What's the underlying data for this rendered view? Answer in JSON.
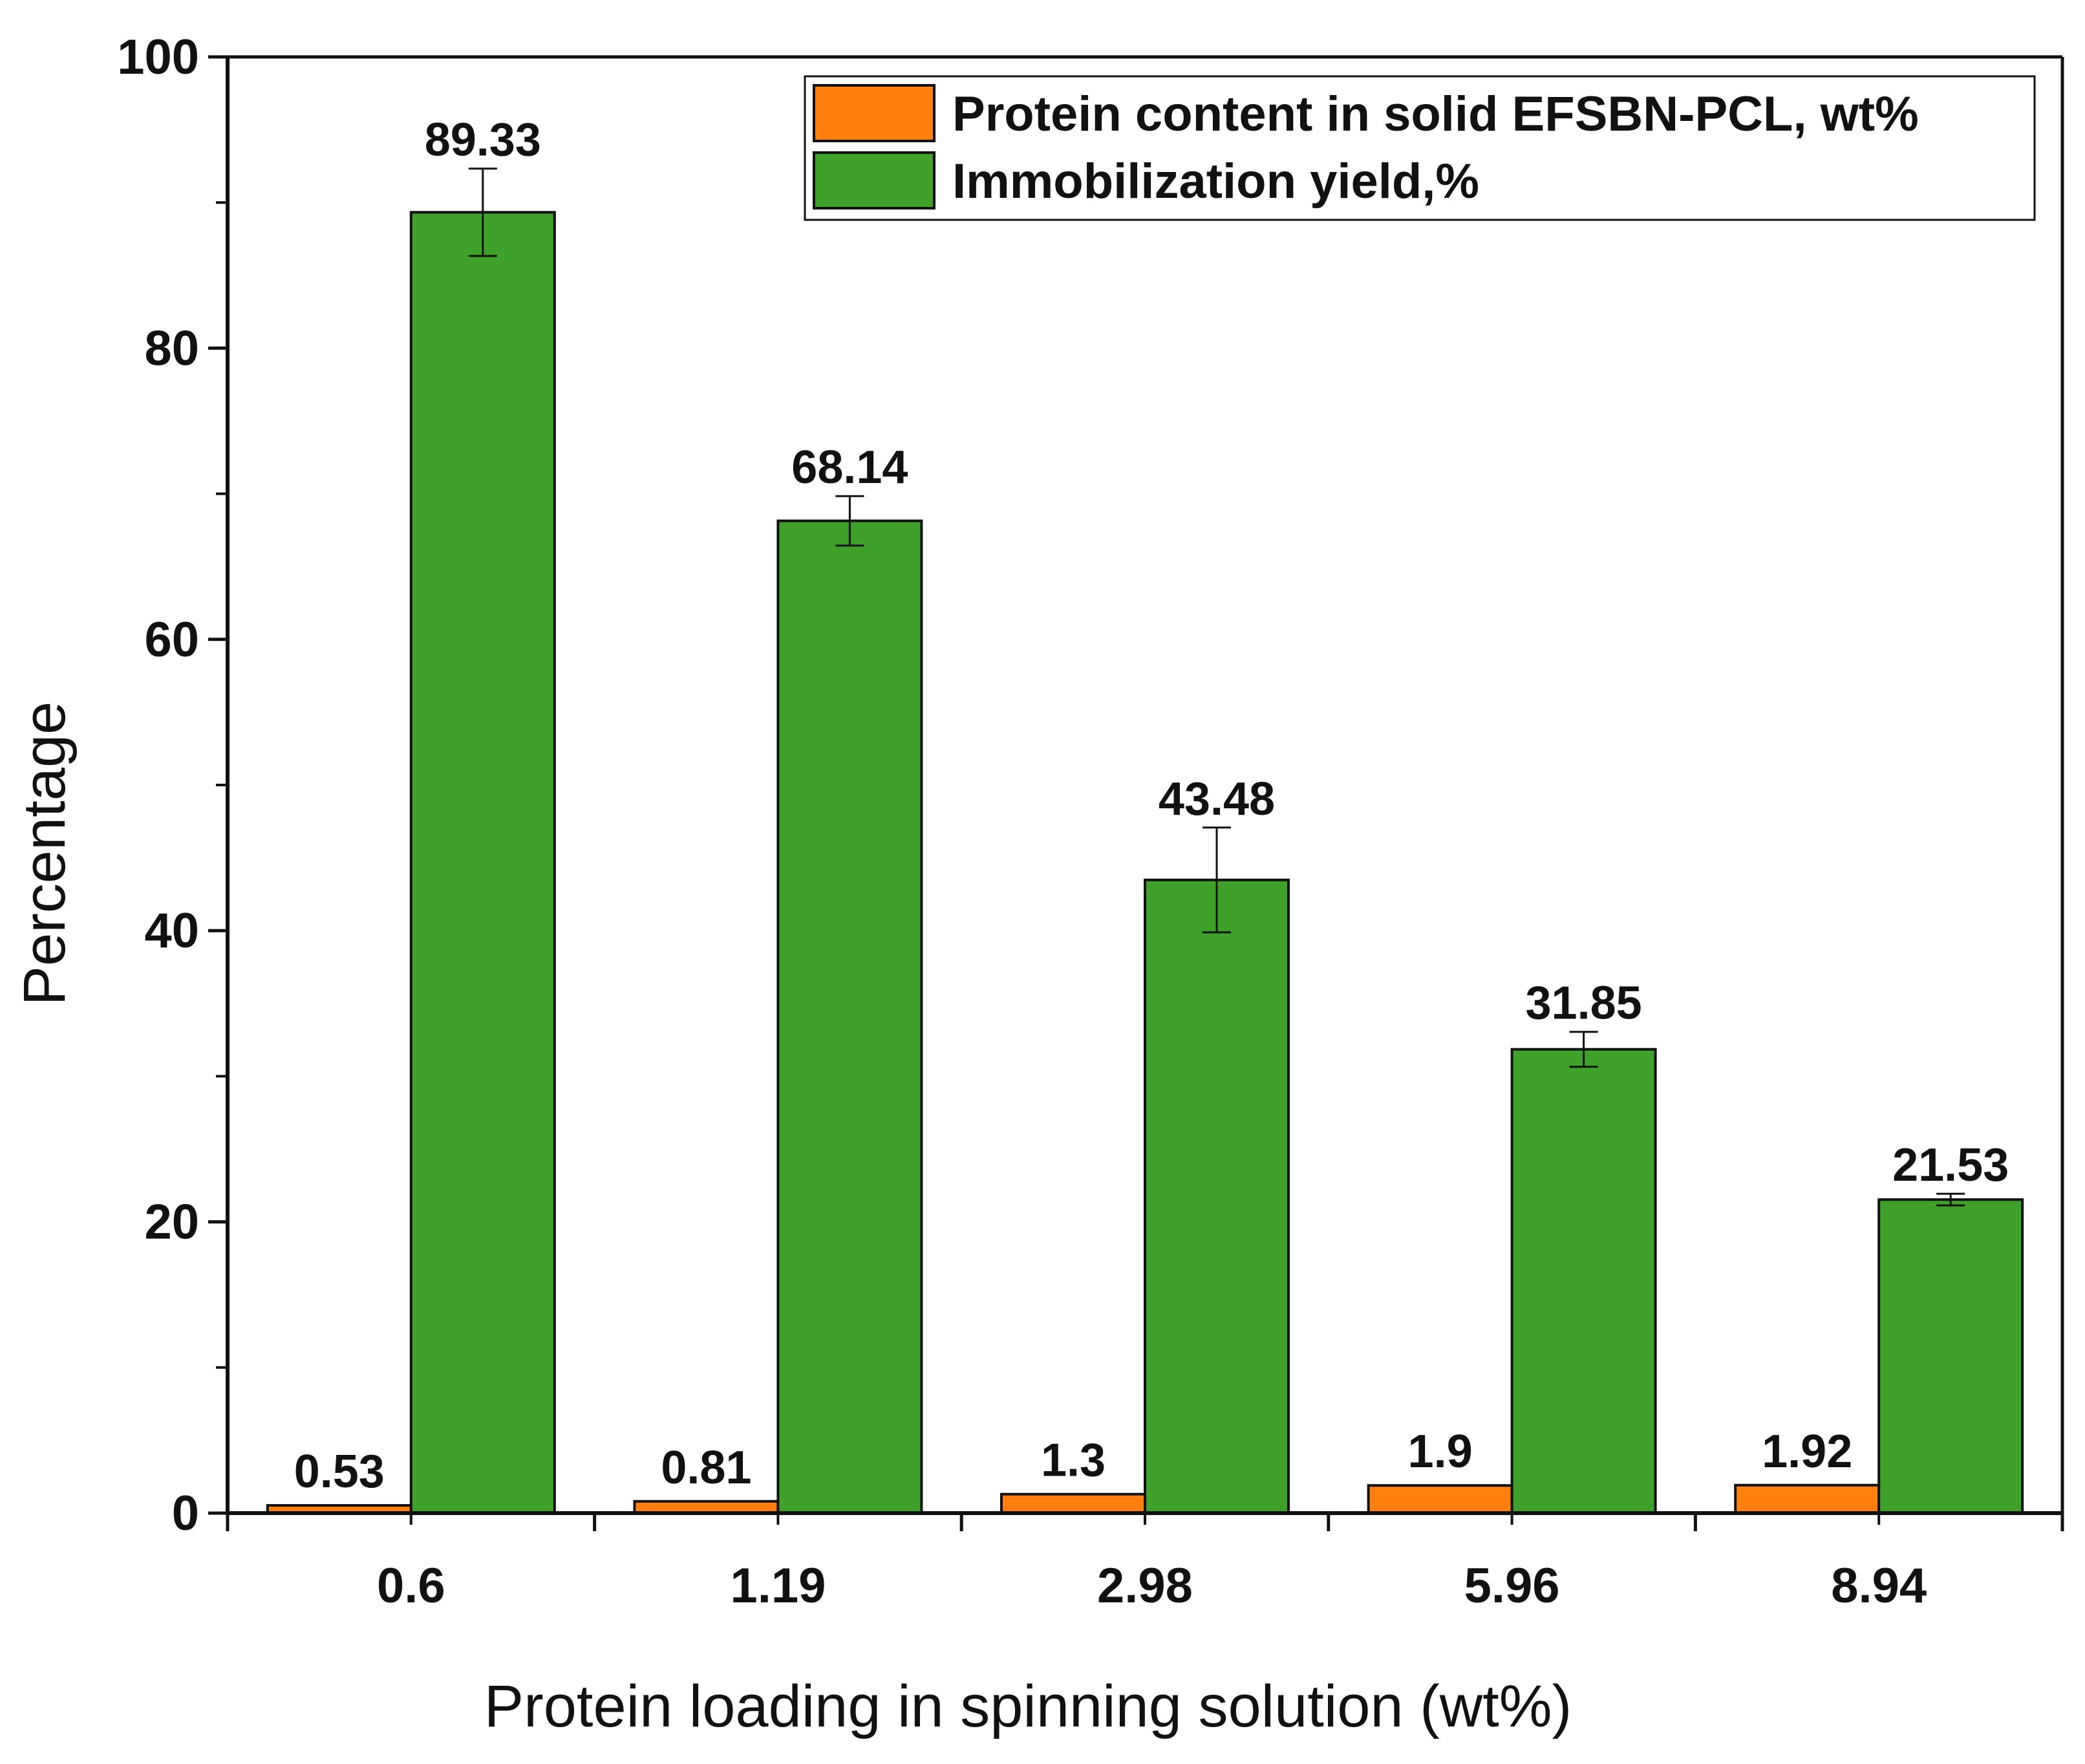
{
  "chart_data": {
    "type": "bar",
    "categories": [
      "0.6",
      "1.19",
      "2.98",
      "5.96",
      "8.94"
    ],
    "series": [
      {
        "name": "Protein content in solid EFSBN-PCL, wt%",
        "color": "#FF7F0E",
        "values": [
          0.53,
          0.81,
          1.3,
          1.9,
          1.92
        ],
        "labels": [
          "0.53",
          "0.81",
          "1.3",
          "1.9",
          "1.92"
        ],
        "errors": [
          0,
          0,
          0,
          0,
          0
        ]
      },
      {
        "name": "Immobilization yield,%",
        "color": "#3FA12A",
        "values": [
          89.33,
          68.14,
          43.48,
          31.85,
          21.53
        ],
        "labels": [
          "89.33",
          "68.14",
          "43.48",
          "31.85",
          "21.53"
        ],
        "errors": [
          3.0,
          1.7,
          3.6,
          1.2,
          0.4
        ]
      }
    ],
    "xlabel": "Protein loading in spinning solution (wt%)",
    "ylabel": "Percentage",
    "ylim": [
      0,
      100
    ],
    "yticks": [
      0,
      20,
      40,
      60,
      80,
      100
    ],
    "legend_position": "top-right",
    "grid": false
  }
}
